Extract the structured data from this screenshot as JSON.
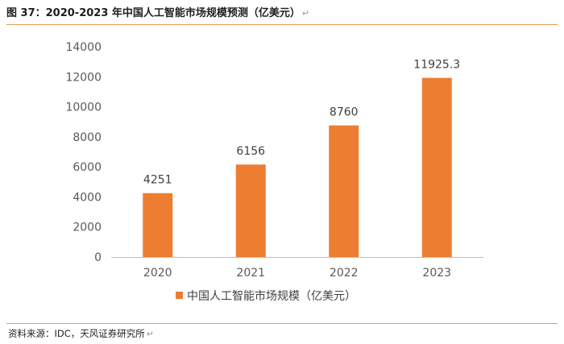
{
  "header": {
    "title": "图 37：2020-2023 年中国人工智能市场规模预测（亿美元）",
    "return_mark": "↵"
  },
  "footer": {
    "source": "资料来源：IDC，天风证券研究所",
    "return_mark": "↵"
  },
  "colors": {
    "bar": "#ED7D31",
    "rule": "#E39B52",
    "axis": "#BFBFBF"
  },
  "chart_data": {
    "type": "bar",
    "title": "",
    "categories": [
      "2020",
      "2021",
      "2022",
      "2023"
    ],
    "series": [
      {
        "name": "中国人工智能市场规模（亿美元）",
        "values": [
          4251,
          6156,
          8760,
          11925.3
        ]
      }
    ],
    "data_labels": [
      "4251",
      "6156",
      "8760",
      "11925.3"
    ],
    "xlabel": "",
    "ylabel": "",
    "ylim": [
      0,
      14000
    ],
    "yticks": [
      0,
      2000,
      4000,
      6000,
      8000,
      10000,
      12000,
      14000
    ],
    "grid": false,
    "legend_position": "bottom"
  }
}
